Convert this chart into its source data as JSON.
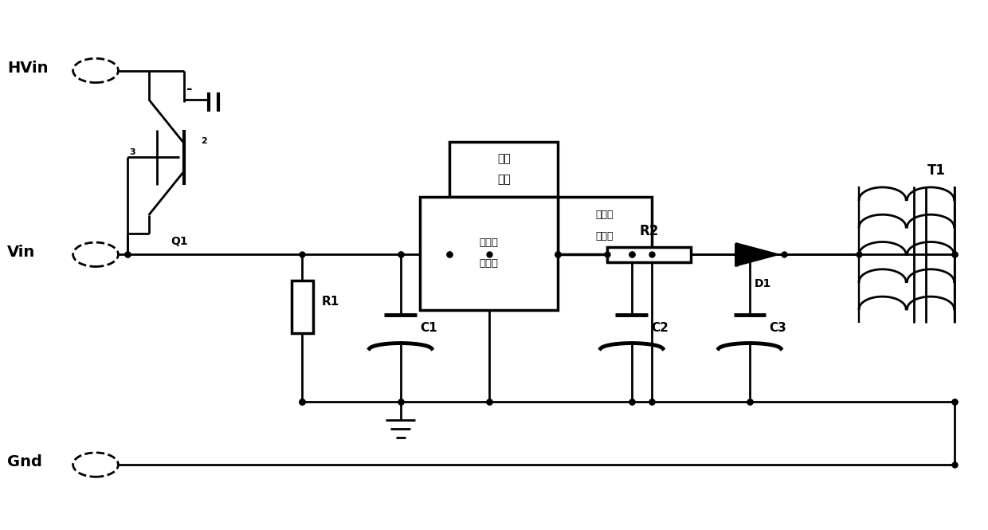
{
  "bg": "#ffffff",
  "lc": "#000000",
  "lw": 2.0,
  "fig_w": 12.4,
  "fig_h": 6.65,
  "dpi": 100,
  "labels": {
    "HVin": "HVin",
    "Vin": "Vin",
    "Gnd": "Gnd",
    "Q1": "Q1",
    "R1": "R1",
    "C1": "C1",
    "R2": "R2",
    "D1": "D1",
    "C2": "C2",
    "C3": "C3",
    "T1": "T1",
    "box1_l1": "限流",
    "box1_l2": "模块",
    "box2_l1": "可控开",
    "box2_l2": "关模块",
    "box3_l1": "采样处",
    "box3_l2": "理模块",
    "pin3": "3",
    "pin2": "2",
    "minus": "-"
  }
}
